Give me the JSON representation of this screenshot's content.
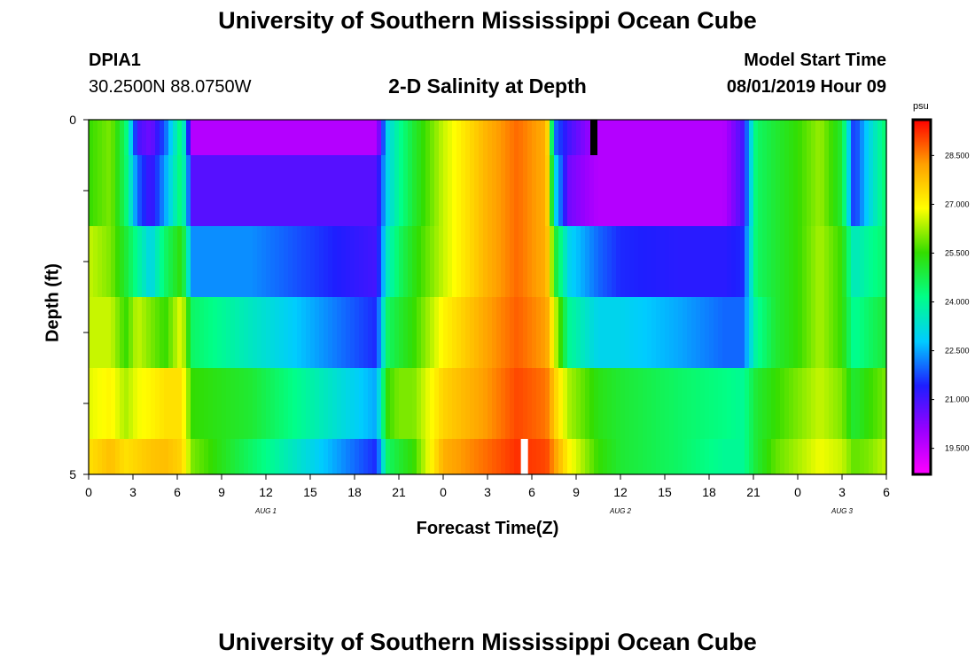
{
  "page": {
    "title_top": "University of Southern Mississippi Ocean Cube",
    "title_bottom": "University of Southern Mississippi Ocean Cube",
    "station_id": "DPIA1",
    "station_coords": "30.2500N 88.0750W",
    "chart_title": "2-D Salinity at Depth",
    "model_start_label": "Model Start Time",
    "model_start_value": "08/01/2019 Hour 09"
  },
  "chart_data": {
    "type": "heatmap",
    "title": "2-D Salinity at Depth",
    "xlabel": "Forecast Time(Z)",
    "ylabel": "Depth (ft)",
    "y_tick_labels": [
      "0",
      "5"
    ],
    "ylim": [
      0,
      5
    ],
    "x_tick_labels": [
      "0",
      "3",
      "6",
      "9",
      "12",
      "15",
      "18",
      "21",
      "0",
      "3",
      "6",
      "9",
      "12",
      "15",
      "18",
      "21",
      "0",
      "3",
      "6"
    ],
    "date_labels": [
      {
        "text": "AUG 1",
        "hour": 12
      },
      {
        "text": "AUG 2",
        "hour": 36
      },
      {
        "text": "AUG 3",
        "hour": 51
      }
    ],
    "x_range_hours": [
      0,
      54
    ],
    "depth_layers": 5,
    "colorbar": {
      "unit": "psu",
      "vmin": 18.7,
      "vmax": 29.6,
      "tick_labels": [
        "28.500",
        "27.000",
        "25.500",
        "24.000",
        "22.500",
        "21.000",
        "19.500"
      ],
      "colors": [
        "#ff00ff",
        "#9900ff",
        "#1e1eff",
        "#00ccff",
        "#00ff88",
        "#33dd00",
        "#ffff00",
        "#ffa000",
        "#ff0000"
      ]
    },
    "keyframes_hours": [
      0,
      1.5,
      2.5,
      3.3,
      4.2,
      5.2,
      6.3,
      7,
      11,
      19.5,
      20.2,
      21,
      22,
      24,
      27,
      29,
      31,
      31.6,
      32.5,
      34.5,
      36,
      40,
      43,
      44.3,
      45.2,
      46.5,
      48,
      49.5,
      51,
      51.8,
      52.8,
      54
    ],
    "values": [
      [
        25.5,
        26.0,
        24.5,
        21.0,
        20.5,
        22.0,
        24.5,
        19.7,
        19.7,
        19.7,
        23.0,
        24.0,
        25.0,
        26.5,
        28.0,
        28.7,
        28.0,
        22.0,
        21.0,
        19.7,
        19.7,
        19.7,
        19.7,
        21.0,
        24.5,
        25.0,
        25.5,
        26.2,
        25.0,
        21.5,
        23.0,
        24.5
      ],
      [
        25.5,
        26.0,
        24.5,
        22.0,
        21.0,
        22.5,
        24.5,
        20.8,
        20.8,
        20.8,
        23.0,
        24.0,
        25.0,
        26.5,
        28.0,
        28.7,
        28.0,
        23.0,
        20.5,
        19.7,
        19.7,
        19.7,
        19.7,
        21.0,
        24.5,
        25.0,
        25.5,
        26.2,
        25.0,
        21.5,
        23.0,
        24.5
      ],
      [
        26.5,
        26.0,
        25.0,
        24.0,
        23.0,
        24.5,
        25.5,
        22.3,
        22.3,
        21.0,
        23.5,
        24.5,
        25.3,
        26.5,
        28.0,
        28.7,
        28.0,
        25.0,
        23.0,
        22.0,
        21.5,
        21.3,
        21.3,
        21.5,
        24.5,
        25.0,
        25.5,
        26.3,
        25.5,
        23.5,
        24.0,
        24.5
      ],
      [
        26.5,
        26.5,
        25.5,
        26.5,
        26.0,
        25.5,
        26.8,
        24.5,
        23.5,
        21.5,
        24.5,
        25.0,
        25.5,
        27.0,
        28.2,
        28.8,
        28.2,
        26.5,
        24.0,
        23.0,
        23.0,
        22.5,
        22.0,
        22.0,
        24.0,
        25.0,
        25.5,
        26.3,
        25.5,
        24.0,
        24.5,
        25.0
      ],
      [
        26.7,
        27.0,
        26.3,
        26.8,
        27.0,
        27.3,
        27.3,
        25.5,
        25.0,
        22.5,
        25.5,
        26.0,
        26.0,
        27.5,
        28.3,
        29.0,
        28.6,
        27.5,
        26.3,
        25.3,
        25.0,
        24.5,
        24.2,
        24.0,
        25.0,
        25.5,
        26.0,
        26.5,
        26.0,
        25.0,
        25.5,
        26.0
      ],
      [
        27.3,
        27.8,
        27.3,
        27.5,
        27.7,
        27.8,
        27.5,
        26.0,
        24.5,
        21.5,
        24.5,
        25.0,
        25.5,
        28.0,
        28.7,
        29.2,
        29.0,
        28.2,
        27.0,
        25.5,
        25.0,
        24.5,
        24.0,
        24.0,
        25.0,
        25.8,
        26.3,
        26.8,
        26.5,
        25.8,
        26.0,
        26.5
      ]
    ],
    "annotations": [
      {
        "type": "marker",
        "color": "#000000",
        "hour": 34.2,
        "depth_row": 0
      },
      {
        "type": "marker",
        "color": "#ffffff",
        "hour": 29.5,
        "depth_row": 5
      }
    ]
  }
}
